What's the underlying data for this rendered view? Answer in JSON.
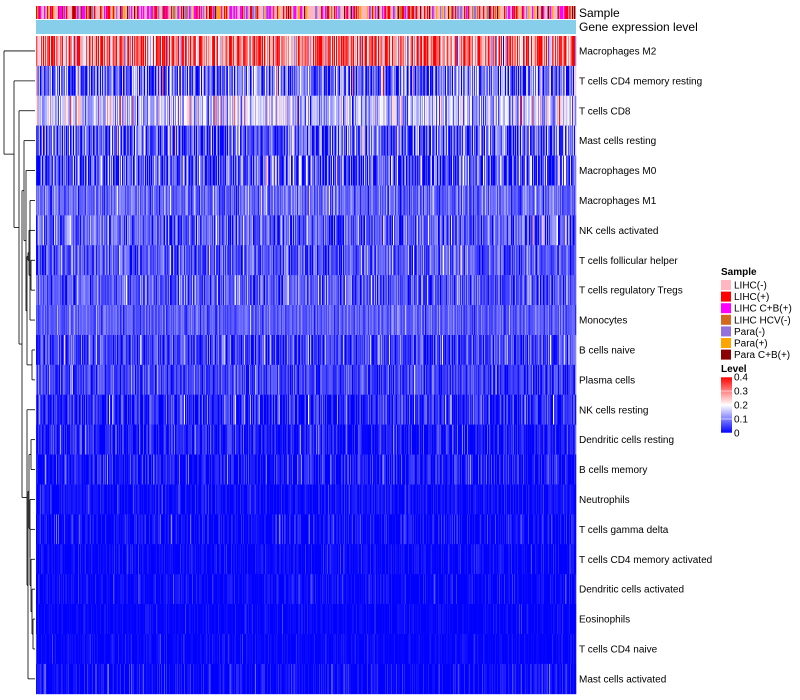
{
  "chart_data": {
    "type": "heatmap",
    "title": "",
    "column_annotations": [
      {
        "name": "Sample",
        "kind": "categorical"
      },
      {
        "name": "Gene expression level",
        "kind": "continuous",
        "color": "#87ceeb"
      }
    ],
    "rows": [
      {
        "label": "Macrophages M2",
        "mean": 0.3,
        "spread": 0.12
      },
      {
        "label": "T cells CD4 memory resting",
        "mean": 0.08,
        "spread": 0.09
      },
      {
        "label": "T cells CD8",
        "mean": 0.15,
        "spread": 0.08
      },
      {
        "label": "Mast cells resting",
        "mean": 0.07,
        "spread": 0.08
      },
      {
        "label": "Macrophages M0",
        "mean": 0.06,
        "spread": 0.09
      },
      {
        "label": "Macrophages M1",
        "mean": 0.08,
        "spread": 0.04
      },
      {
        "label": "NK cells activated",
        "mean": 0.07,
        "spread": 0.06
      },
      {
        "label": "T cells follicular helper",
        "mean": 0.07,
        "spread": 0.05
      },
      {
        "label": "T cells regulatory  Tregs",
        "mean": 0.07,
        "spread": 0.05
      },
      {
        "label": "Monocytes",
        "mean": 0.07,
        "spread": 0.03
      },
      {
        "label": "B cells naive",
        "mean": 0.05,
        "spread": 0.05
      },
      {
        "label": "Plasma cells",
        "mean": 0.05,
        "spread": 0.04
      },
      {
        "label": "NK cells resting",
        "mean": 0.03,
        "spread": 0.05
      },
      {
        "label": "Dendritic cells resting",
        "mean": 0.02,
        "spread": 0.04
      },
      {
        "label": "B cells memory",
        "mean": 0.02,
        "spread": 0.04
      },
      {
        "label": "Neutrophils",
        "mean": 0.01,
        "spread": 0.02
      },
      {
        "label": "T cells gamma delta",
        "mean": 0.01,
        "spread": 0.03
      },
      {
        "label": "T cells CD4 memory activated",
        "mean": 0.005,
        "spread": 0.02
      },
      {
        "label": "Dendritic cells activated",
        "mean": 0.005,
        "spread": 0.02
      },
      {
        "label": "Eosinophils",
        "mean": 0.003,
        "spread": 0.015
      },
      {
        "label": "T cells CD4 naive",
        "mean": 0.003,
        "spread": 0.015
      },
      {
        "label": "Mast cells activated",
        "mean": 0.005,
        "spread": 0.03
      }
    ],
    "legend_sample": {
      "title": "Sample",
      "entries": [
        {
          "label": "LIHC(-)",
          "color": "#ffb6c1"
        },
        {
          "label": "LIHC(+)",
          "color": "#ff0000"
        },
        {
          "label": "LIHC C+B(+)",
          "color": "#ff00ff"
        },
        {
          "label": "LIHC HCV(-)",
          "color": "#d2691e"
        },
        {
          "label": "Para(-)",
          "color": "#9370db"
        },
        {
          "label": "Para(+)",
          "color": "#ffa500"
        },
        {
          "label": "Para C+B(+)",
          "color": "#8b0000"
        }
      ]
    },
    "legend_level": {
      "title": "Level",
      "ticks": [
        "0.4",
        "0.3",
        "0.2",
        "0.1",
        "0"
      ],
      "tick_values": [
        0.4,
        0.3,
        0.2,
        0.1,
        0
      ],
      "range": [
        0,
        0.4
      ],
      "colors": [
        "#0000ff",
        "#ffffff",
        "#ff0000"
      ]
    },
    "sample_weights": [
      0.45,
      0.15,
      0.15,
      0.03,
      0.12,
      0.06,
      0.04
    ]
  }
}
